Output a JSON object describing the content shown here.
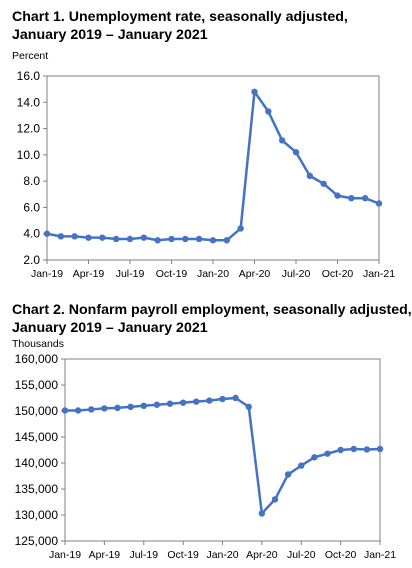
{
  "charts": [
    {
      "title_line1": "Chart 1. Unemployment rate, seasonally adjusted,",
      "title_line2": "January 2019 – January 2021",
      "unit": "Percent"
    },
    {
      "title_line1": "Chart 2. Nonfarm payroll employment, seasonally adjusted,",
      "title_line2": "January 2019 – January 2021",
      "unit": "Thousands"
    }
  ],
  "chart_data": [
    {
      "type": "line",
      "title": "Chart 1. Unemployment rate, seasonally adjusted, January 2019 – January 2021",
      "ylabel": "Percent",
      "xlabel": "",
      "ylim": [
        2.0,
        16.0
      ],
      "yticks": [
        2.0,
        4.0,
        6.0,
        8.0,
        10.0,
        12.0,
        14.0,
        16.0
      ],
      "ytick_labels": [
        "2.0",
        "4.0",
        "6.0",
        "8.0",
        "10.0",
        "12.0",
        "14.0",
        "16.0"
      ],
      "xtick_labels": [
        "Jan-19",
        "Apr-19",
        "Jul-19",
        "Oct-19",
        "Jan-20",
        "Apr-20",
        "Jul-20",
        "Oct-20",
        "Jan-21"
      ],
      "x": [
        "Jan-19",
        "Feb-19",
        "Mar-19",
        "Apr-19",
        "May-19",
        "Jun-19",
        "Jul-19",
        "Aug-19",
        "Sep-19",
        "Oct-19",
        "Nov-19",
        "Dec-19",
        "Jan-20",
        "Feb-20",
        "Mar-20",
        "Apr-20",
        "May-20",
        "Jun-20",
        "Jul-20",
        "Aug-20",
        "Sep-20",
        "Oct-20",
        "Nov-20",
        "Dec-20",
        "Jan-21"
      ],
      "values": [
        4.0,
        3.8,
        3.8,
        3.7,
        3.7,
        3.6,
        3.6,
        3.7,
        3.5,
        3.6,
        3.6,
        3.6,
        3.5,
        3.5,
        4.4,
        14.8,
        13.3,
        11.1,
        10.2,
        8.4,
        7.8,
        6.9,
        6.7,
        6.7,
        6.3
      ],
      "color": "#4472c4",
      "grid": false
    },
    {
      "type": "line",
      "title": "Chart 2. Nonfarm payroll employment, seasonally adjusted, January 2019 – January 2021",
      "ylabel": "Thousands",
      "xlabel": "",
      "ylim": [
        125000,
        160000
      ],
      "yticks": [
        125000,
        130000,
        135000,
        140000,
        145000,
        150000,
        155000,
        160000
      ],
      "ytick_labels": [
        "125,000",
        "130,000",
        "135,000",
        "140,000",
        "145,000",
        "150,000",
        "155,000",
        "160,000"
      ],
      "xtick_labels": [
        "Jan-19",
        "Apr-19",
        "Jul-19",
        "Oct-19",
        "Jan-20",
        "Apr-20",
        "Jul-20",
        "Oct-20",
        "Jan-21"
      ],
      "x": [
        "Jan-19",
        "Feb-19",
        "Mar-19",
        "Apr-19",
        "May-19",
        "Jun-19",
        "Jul-19",
        "Aug-19",
        "Sep-19",
        "Oct-19",
        "Nov-19",
        "Dec-19",
        "Jan-20",
        "Feb-20",
        "Mar-20",
        "Apr-20",
        "May-20",
        "Jun-20",
        "Jul-20",
        "Aug-20",
        "Sep-20",
        "Oct-20",
        "Nov-20",
        "Dec-20",
        "Jan-21"
      ],
      "values": [
        150100,
        150100,
        150300,
        150500,
        150600,
        150800,
        151000,
        151200,
        151400,
        151600,
        151800,
        152000,
        152300,
        152500,
        150800,
        130300,
        133000,
        137800,
        139500,
        141100,
        141800,
        142500,
        142700,
        142600,
        142700
      ],
      "color": "#4472c4",
      "grid": false
    }
  ]
}
